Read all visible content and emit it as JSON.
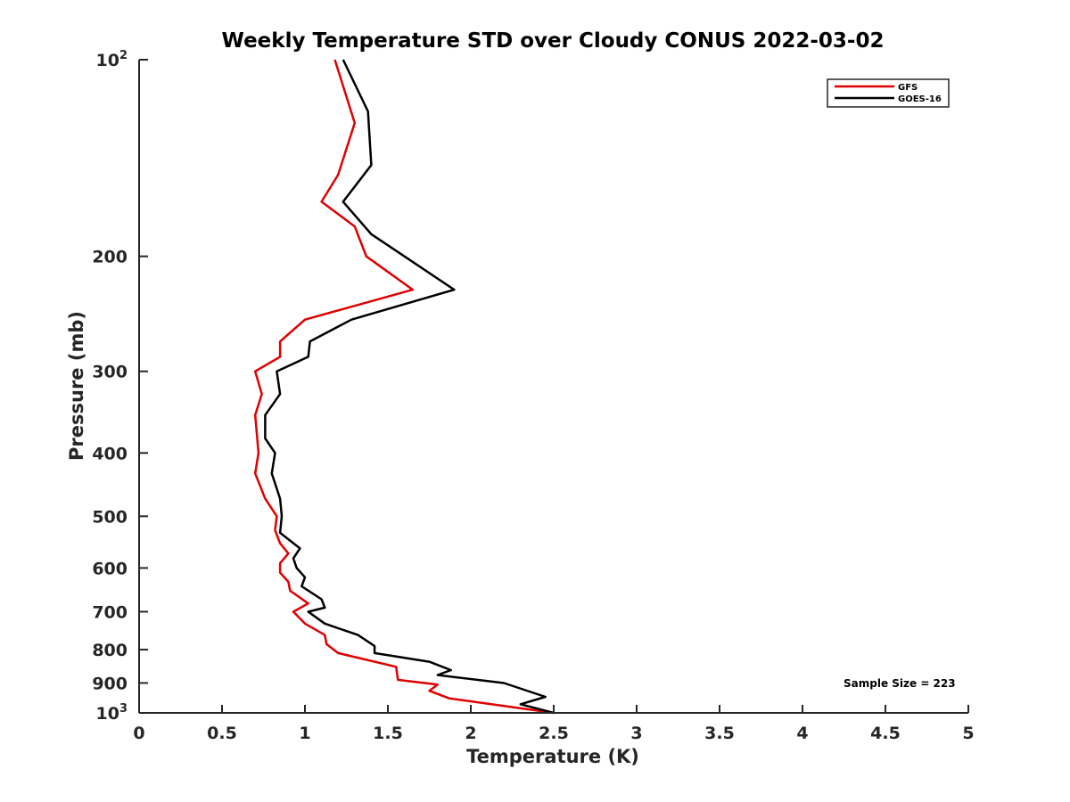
{
  "chart_data": {
    "type": "line",
    "title": "Weekly Temperature STD over Cloudy CONUS 2022-03-02",
    "xlabel": "Temperature (K)",
    "ylabel": "Pressure (mb)",
    "xlim": [
      0,
      5
    ],
    "ylim": [
      100,
      1000
    ],
    "y_scale": "log",
    "y_reversed": true,
    "grid": false,
    "legend_position": "top-right",
    "x_ticks": [
      0,
      0.5,
      1,
      1.5,
      2,
      2.5,
      3,
      3.5,
      4,
      4.5,
      5
    ],
    "x_tick_labels": [
      "0",
      "0.5",
      "1",
      "1.5",
      "2",
      "2.5",
      "3",
      "3.5",
      "4",
      "4.5",
      "5"
    ],
    "y_ticks": [
      {
        "value": 100,
        "label": "10",
        "sup": "2"
      },
      {
        "value": 200,
        "label": "200",
        "sup": ""
      },
      {
        "value": 300,
        "label": "300",
        "sup": ""
      },
      {
        "value": 400,
        "label": "400",
        "sup": ""
      },
      {
        "value": 500,
        "label": "500",
        "sup": ""
      },
      {
        "value": 600,
        "label": "600",
        "sup": ""
      },
      {
        "value": 700,
        "label": "700",
        "sup": ""
      },
      {
        "value": 800,
        "label": "800",
        "sup": ""
      },
      {
        "value": 900,
        "label": "900",
        "sup": ""
      },
      {
        "value": 1000,
        "label": "10",
        "sup": "3"
      }
    ],
    "series": [
      {
        "name": "GFS",
        "color": "#e00000",
        "points": [
          [
            1.18,
            100
          ],
          [
            1.3,
            125
          ],
          [
            1.2,
            150
          ],
          [
            1.1,
            165
          ],
          [
            1.3,
            180
          ],
          [
            1.37,
            200
          ],
          [
            1.65,
            225
          ],
          [
            1.0,
            250
          ],
          [
            0.85,
            270
          ],
          [
            0.85,
            285
          ],
          [
            0.7,
            300
          ],
          [
            0.74,
            325
          ],
          [
            0.7,
            350
          ],
          [
            0.72,
            400
          ],
          [
            0.7,
            430
          ],
          [
            0.76,
            470
          ],
          [
            0.83,
            500
          ],
          [
            0.82,
            525
          ],
          [
            0.85,
            550
          ],
          [
            0.9,
            570
          ],
          [
            0.85,
            590
          ],
          [
            0.85,
            610
          ],
          [
            0.9,
            630
          ],
          [
            0.91,
            650
          ],
          [
            1.02,
            680
          ],
          [
            0.93,
            700
          ],
          [
            1.0,
            730
          ],
          [
            1.12,
            760
          ],
          [
            1.13,
            785
          ],
          [
            1.2,
            810
          ],
          [
            1.55,
            850
          ],
          [
            1.56,
            890
          ],
          [
            1.8,
            905
          ],
          [
            1.75,
            925
          ],
          [
            1.87,
            950
          ],
          [
            2.5,
            1000
          ]
        ]
      },
      {
        "name": "GOES-16",
        "color": "#000000",
        "points": [
          [
            1.23,
            100
          ],
          [
            1.38,
            120
          ],
          [
            1.4,
            145
          ],
          [
            1.23,
            165
          ],
          [
            1.4,
            185
          ],
          [
            1.6,
            200
          ],
          [
            1.9,
            225
          ],
          [
            1.28,
            250
          ],
          [
            1.03,
            270
          ],
          [
            1.02,
            285
          ],
          [
            0.83,
            300
          ],
          [
            0.85,
            325
          ],
          [
            0.76,
            350
          ],
          [
            0.76,
            380
          ],
          [
            0.82,
            400
          ],
          [
            0.8,
            430
          ],
          [
            0.85,
            470
          ],
          [
            0.86,
            500
          ],
          [
            0.85,
            530
          ],
          [
            0.97,
            560
          ],
          [
            0.93,
            580
          ],
          [
            0.95,
            600
          ],
          [
            1.0,
            620
          ],
          [
            0.98,
            640
          ],
          [
            1.1,
            670
          ],
          [
            1.12,
            690
          ],
          [
            1.02,
            700
          ],
          [
            1.12,
            730
          ],
          [
            1.32,
            760
          ],
          [
            1.42,
            790
          ],
          [
            1.42,
            810
          ],
          [
            1.75,
            835
          ],
          [
            1.88,
            860
          ],
          [
            1.8,
            875
          ],
          [
            2.2,
            900
          ],
          [
            2.45,
            945
          ],
          [
            2.3,
            970
          ],
          [
            2.5,
            1000
          ]
        ]
      }
    ],
    "annotation": "Sample Size = 223"
  }
}
